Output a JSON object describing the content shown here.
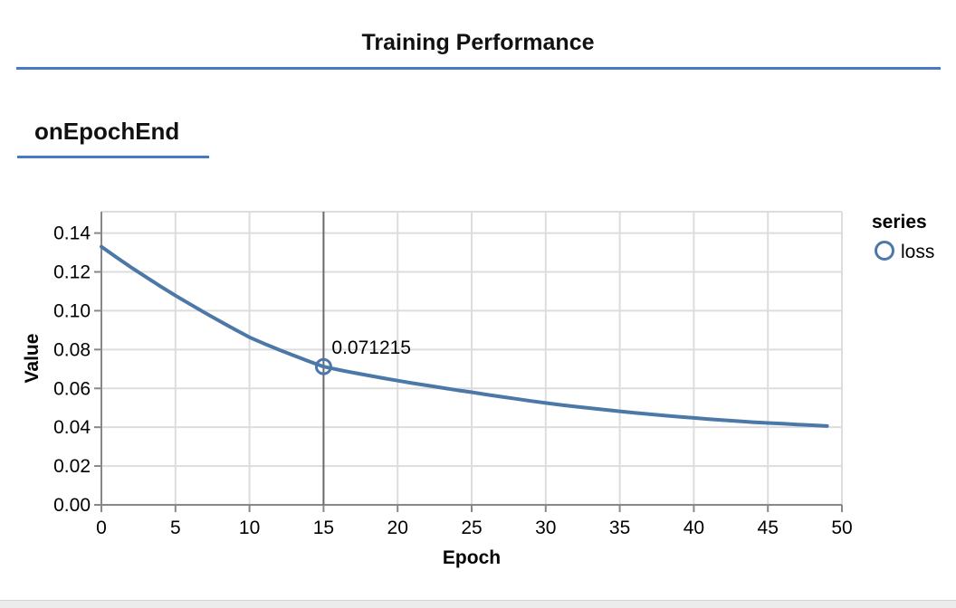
{
  "page": {
    "title": "Training Performance",
    "section_title": "onEpochEnd",
    "accent_rule_color": "#4878c8"
  },
  "chart_data": {
    "type": "line",
    "title": "",
    "xlabel": "Epoch",
    "ylabel": "Value",
    "xlim": [
      0,
      50
    ],
    "ylim": [
      0,
      0.151
    ],
    "grid": true,
    "x_ticks": [
      "0",
      "5",
      "10",
      "15",
      "20",
      "25",
      "30",
      "35",
      "40",
      "45",
      "50"
    ],
    "x_tick_values": [
      0,
      5,
      10,
      15,
      20,
      25,
      30,
      35,
      40,
      45,
      50
    ],
    "y_ticks": [
      "0.00",
      "0.02",
      "0.04",
      "0.06",
      "0.08",
      "0.10",
      "0.12",
      "0.14"
    ],
    "y_tick_values": [
      0,
      0.02,
      0.04,
      0.06,
      0.08,
      0.1,
      0.12,
      0.14
    ],
    "legend": {
      "title": "series",
      "position": "right",
      "entries": [
        {
          "label": "loss",
          "marker": "open-circle",
          "color": "#4c78a8"
        }
      ]
    },
    "series": [
      {
        "name": "loss",
        "color": "#4c78a8",
        "x": [
          0,
          1,
          2,
          3,
          4,
          5,
          6,
          7,
          8,
          9,
          10,
          11,
          12,
          13,
          14,
          15,
          16,
          17,
          18,
          19,
          20,
          21,
          22,
          23,
          24,
          25,
          26,
          27,
          28,
          29,
          30,
          31,
          32,
          33,
          34,
          35,
          36,
          37,
          38,
          39,
          40,
          41,
          42,
          43,
          44,
          45,
          46,
          47,
          48,
          49
        ],
        "values": [
          0.133,
          0.1276,
          0.1224,
          0.1174,
          0.1125,
          0.1078,
          0.1033,
          0.0989,
          0.0946,
          0.0904,
          0.0863,
          0.083,
          0.0799,
          0.0769,
          0.074,
          0.071215,
          0.0696,
          0.0681,
          0.0667,
          0.0653,
          0.064,
          0.0627,
          0.0615,
          0.0603,
          0.0591,
          0.058,
          0.0568,
          0.0557,
          0.0546,
          0.0535,
          0.0525,
          0.0515,
          0.0506,
          0.0498,
          0.049,
          0.0482,
          0.0474,
          0.0467,
          0.046,
          0.0454,
          0.0448,
          0.0442,
          0.0436,
          0.0431,
          0.0426,
          0.0422,
          0.0418,
          0.0414,
          0.041,
          0.0406
        ]
      }
    ],
    "highlight": {
      "series": "loss",
      "epoch": 15,
      "value": 0.071215,
      "label": "0.071215",
      "rule_color": "#6b6b6b"
    },
    "colors": {
      "line": "#4c78a8",
      "grid": "#dddddd",
      "axis_domain": "#888888",
      "label_text": "#000000"
    }
  }
}
